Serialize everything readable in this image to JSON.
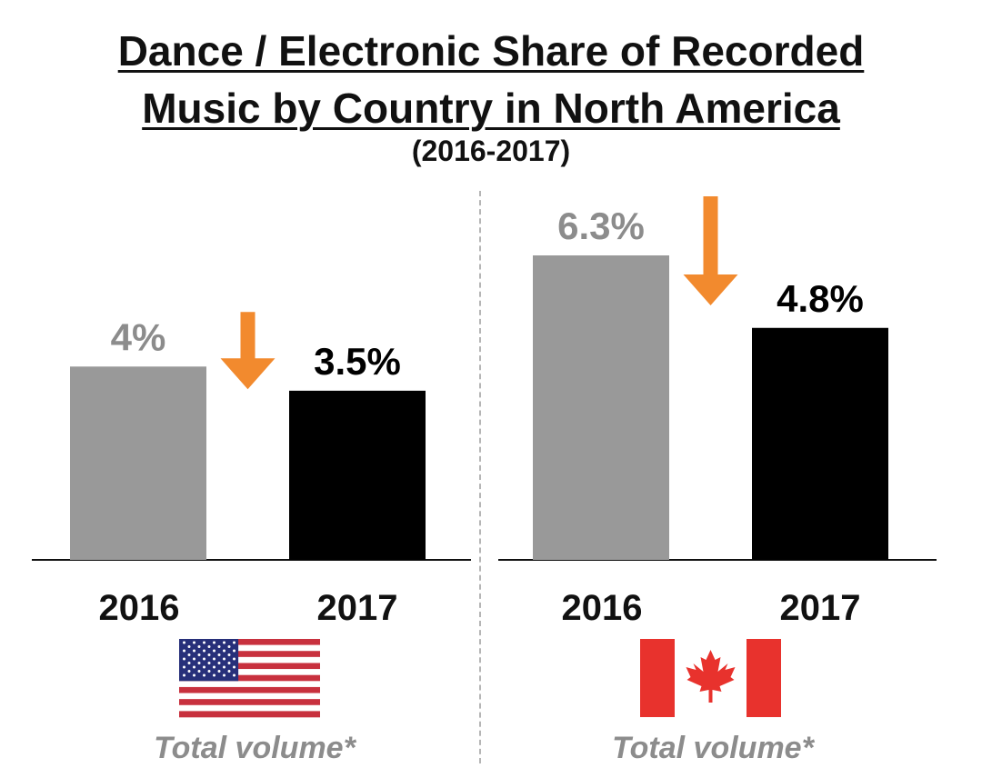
{
  "title_line1": "Dance / Electronic Share of Recorded",
  "title_line2": "Music by Country in North America",
  "subtitle": "(2016-2017)",
  "colors": {
    "bar_2016": "#999999",
    "bar_2017": "#000000",
    "label_2016": "#8c8c8c",
    "label_2017": "#000000",
    "arrow": "#f28a2e"
  },
  "chart_data": [
    {
      "type": "bar",
      "country_flag": "us-flag-icon",
      "categories": [
        "2016",
        "2017"
      ],
      "values": [
        4,
        3.5
      ],
      "labels": [
        "4%",
        "3.5%"
      ],
      "note": "Total volume*",
      "trend": "down"
    },
    {
      "type": "bar",
      "country_flag": "canada-flag-icon",
      "categories": [
        "2016",
        "2017"
      ],
      "values": [
        6.3,
        4.8
      ],
      "labels": [
        "6.3%",
        "4.8%"
      ],
      "note": "Total volume*",
      "trend": "down"
    }
  ]
}
